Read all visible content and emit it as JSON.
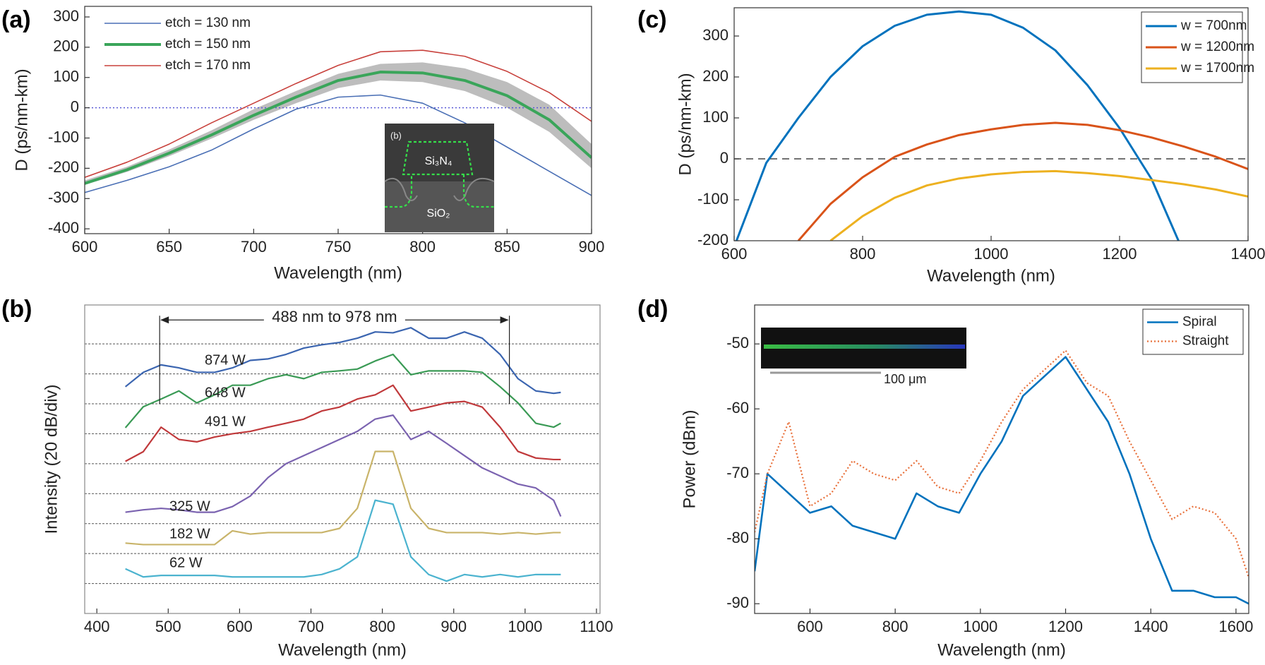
{
  "chart_data": [
    {
      "type": "line",
      "panel_label": "(a)",
      "xlabel": "Wavelength (nm)",
      "ylabel": "D  (ps/nm-km)",
      "x": [
        600,
        625,
        650,
        675,
        700,
        725,
        750,
        775,
        800,
        825,
        850,
        875,
        900
      ],
      "series": [
        {
          "name": "etch = 130 nm",
          "color": "#4a6fb5",
          "width": 1.6,
          "values": [
            -280,
            -240,
            -195,
            -140,
            -70,
            -5,
            35,
            42,
            15,
            -50,
            -130,
            -210,
            -290
          ]
        },
        {
          "name": "etch = 150 nm",
          "color": "#3aa55a",
          "width": 4,
          "values": [
            -250,
            -205,
            -150,
            -90,
            -25,
            35,
            90,
            118,
            115,
            90,
            40,
            -40,
            -165
          ]
        },
        {
          "name": "etch = 170 nm",
          "color": "#c8413c",
          "width": 1.6,
          "values": [
            -230,
            -180,
            -120,
            -50,
            15,
            80,
            140,
            185,
            190,
            170,
            120,
            50,
            -45
          ]
        }
      ],
      "band": {
        "color": "#bdbdbd",
        "lower": [
          -255,
          -212,
          -160,
          -102,
          -40,
          15,
          65,
          90,
          85,
          55,
          0,
          -80,
          -200
        ],
        "upper": [
          -240,
          -195,
          -138,
          -75,
          -5,
          55,
          112,
          145,
          150,
          130,
          85,
          10,
          -120
        ]
      },
      "hline": {
        "value": 0,
        "color": "#5b5bd6",
        "dash": "dotted"
      },
      "xlim": [
        600,
        900
      ],
      "xticks": [
        600,
        650,
        700,
        750,
        800,
        850,
        900
      ],
      "ylim": [
        -416,
        335
      ],
      "yticks": [
        -400,
        -300,
        -200,
        -100,
        0,
        100,
        200,
        300
      ],
      "legend": "upper left",
      "legend_box": false,
      "inset": {
        "label": "(b)",
        "core": "Si₃N₄",
        "cladding": "SiO₂"
      }
    },
    {
      "type": "line",
      "panel_label": "(b)",
      "xlabel": "Wavelength (nm)",
      "ylabel": "Intensity (20 dB/div)",
      "x": [
        440,
        465,
        490,
        515,
        540,
        565,
        590,
        615,
        640,
        665,
        690,
        715,
        740,
        765,
        790,
        815,
        840,
        865,
        890,
        915,
        940,
        965,
        990,
        1015,
        1040,
        1050
      ],
      "series": [
        {
          "name": "874 W",
          "color": "#3b65b0",
          "width": 2.2,
          "values": [
            7.57,
            8.05,
            8.3,
            8.2,
            8.05,
            8.05,
            8.2,
            8.45,
            8.5,
            8.65,
            8.86,
            8.97,
            9.05,
            9.19,
            9.4,
            9.37,
            9.54,
            9.19,
            9.19,
            9.4,
            9.19,
            8.65,
            7.84,
            7.43,
            7.35,
            7.38
          ]
        },
        {
          "name": "648 W",
          "color": "#3a9a55",
          "width": 2.2,
          "values": [
            6.2,
            6.9,
            7.16,
            7.43,
            7.03,
            7.3,
            7.62,
            7.62,
            7.84,
            7.97,
            7.84,
            8.05,
            8.1,
            8.16,
            8.43,
            8.65,
            7.97,
            8.1,
            8.1,
            8.1,
            8.05,
            7.57,
            7.03,
            6.35,
            6.22,
            6.35
          ]
        },
        {
          "name": "491 W",
          "color": "#c0393b",
          "width": 2.2,
          "values": [
            5.08,
            5.4,
            6.22,
            5.81,
            5.73,
            5.89,
            6.0,
            6.08,
            6.22,
            6.35,
            6.49,
            6.76,
            6.89,
            7.16,
            7.3,
            7.62,
            6.76,
            6.89,
            7.03,
            7.08,
            6.89,
            6.22,
            5.41,
            5.19,
            5.14,
            5.14
          ]
        },
        {
          "name": "325 W",
          "color": "#7b63b0",
          "width": 2.2,
          "values": [
            3.38,
            3.46,
            3.51,
            3.46,
            3.38,
            3.38,
            3.57,
            3.92,
            4.54,
            5.0,
            5.27,
            5.54,
            5.81,
            6.08,
            6.49,
            6.62,
            5.81,
            6.08,
            5.68,
            5.27,
            4.86,
            4.59,
            4.32,
            4.19,
            3.78,
            3.24
          ]
        },
        {
          "name": "182 W",
          "color": "#c9b46a",
          "width": 2.2,
          "values": [
            2.35,
            2.3,
            2.3,
            2.3,
            2.3,
            2.3,
            2.76,
            2.65,
            2.7,
            2.7,
            2.7,
            2.7,
            2.84,
            3.51,
            5.41,
            5.41,
            3.51,
            2.84,
            2.7,
            2.7,
            2.7,
            2.65,
            2.7,
            2.65,
            2.7,
            2.7
          ]
        },
        {
          "name": "62 W",
          "color": "#4bb3cf",
          "width": 2.2,
          "values": [
            1.49,
            1.22,
            1.27,
            1.27,
            1.27,
            1.27,
            1.22,
            1.22,
            1.22,
            1.22,
            1.22,
            1.3,
            1.49,
            1.89,
            3.78,
            3.65,
            1.89,
            1.3,
            1.08,
            1.3,
            1.22,
            1.3,
            1.22,
            1.3,
            1.3,
            1.3
          ]
        }
      ],
      "grid_lines": [
        1,
        2,
        3,
        4,
        5,
        6,
        7,
        8,
        9
      ],
      "span": {
        "label": "488 nm to 978 nm",
        "from": 488,
        "to": 978
      },
      "xlim": [
        383,
        1105
      ],
      "xticks": [
        400,
        500,
        600,
        700,
        800,
        900,
        1000,
        1100
      ],
      "ylim": [
        0,
        10.3
      ],
      "legend": "inline"
    },
    {
      "type": "line",
      "panel_label": "(c)",
      "xlabel": "Wavelength (nm)",
      "ylabel": "D  (ps/nm-km)",
      "x": [
        600,
        650,
        700,
        750,
        800,
        850,
        900,
        950,
        1000,
        1050,
        1100,
        1150,
        1200,
        1250,
        1300,
        1350,
        1400
      ],
      "series": [
        {
          "name": "w = 700nm",
          "color": "#0072bd",
          "width": 3,
          "values": [
            -215,
            -10,
            100,
            200,
            275,
            325,
            352,
            360,
            352,
            320,
            265,
            180,
            75,
            -50,
            -230,
            null,
            null
          ]
        },
        {
          "name": "w = 1200nm",
          "color": "#d95319",
          "width": 3,
          "values": [
            null,
            null,
            -200,
            -110,
            -45,
            5,
            35,
            58,
            72,
            83,
            88,
            83,
            70,
            52,
            30,
            5,
            -25
          ]
        },
        {
          "name": "w = 1700nm",
          "color": "#edb120",
          "width": 3,
          "values": [
            null,
            null,
            null,
            -200,
            -140,
            -95,
            -65,
            -48,
            -38,
            -32,
            -30,
            -35,
            -42,
            -52,
            -62,
            -75,
            -92
          ]
        }
      ],
      "hline": {
        "value": 0,
        "color": "#444",
        "dash": "dashed"
      },
      "xlim": [
        600,
        1400
      ],
      "xticks": [
        600,
        800,
        1000,
        1200,
        1400
      ],
      "ylim": [
        -200,
        369
      ],
      "yticks": [
        -200,
        -100,
        0,
        100,
        200,
        300
      ],
      "legend": "upper right",
      "legend_box": true
    },
    {
      "type": "line",
      "panel_label": "(d)",
      "xlabel": "Wavelength (nm)",
      "ylabel": "Power (dBm)",
      "x": [
        470,
        500,
        550,
        600,
        650,
        700,
        750,
        800,
        850,
        900,
        950,
        1000,
        1050,
        1100,
        1150,
        1200,
        1250,
        1300,
        1350,
        1400,
        1450,
        1500,
        1550,
        1600,
        1630
      ],
      "series": [
        {
          "name": "Spiral",
          "color": "#0072bd",
          "width": 2.6,
          "values": [
            -85,
            -70,
            -73,
            -76,
            -75,
            -78,
            -79,
            -80,
            -73,
            -75,
            -76,
            -70,
            -65,
            -58,
            -55,
            -52,
            -57,
            -62,
            -70,
            -80,
            -88,
            -88,
            -89,
            -89,
            -90
          ]
        },
        {
          "name": "Straight",
          "color": "#e8703a",
          "width": 2.2,
          "dash": "dotted",
          "values": [
            -79,
            -70,
            -62,
            -75,
            -73,
            -68,
            -70,
            -71,
            -68,
            -72,
            -73,
            -68,
            -62,
            -57,
            -54,
            -51,
            -56,
            -58,
            -65,
            -71,
            -77,
            -75,
            -76,
            -80,
            -86
          ]
        }
      ],
      "xlim": [
        470,
        1630
      ],
      "xticks": [
        600,
        800,
        1000,
        1200,
        1400,
        1600
      ],
      "ylim": [
        -91.5,
        -44
      ],
      "yticks": [
        -90,
        -80,
        -70,
        -60,
        -50
      ],
      "legend": "upper right",
      "legend_box": true,
      "inset": {
        "scale_label": "100 μm"
      }
    }
  ]
}
